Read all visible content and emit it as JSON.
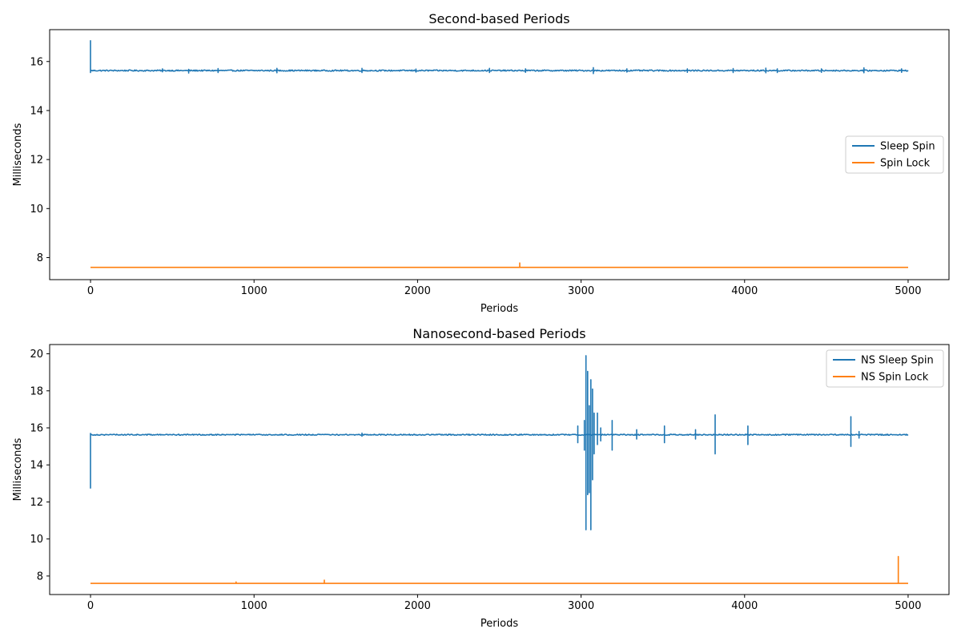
{
  "chart_data": [
    {
      "type": "line",
      "title": "Second-based Periods",
      "xlabel": "Periods",
      "ylabel": "Milliseconds",
      "xlim": [
        -250,
        5250
      ],
      "ylim": [
        7.1,
        17.3
      ],
      "xticks": [
        0,
        1000,
        2000,
        3000,
        4000,
        5000
      ],
      "yticks": [
        8,
        10,
        12,
        14,
        16
      ],
      "legend_position": "center-right",
      "series": [
        {
          "name": "Sleep Spin",
          "color": "#1f77b4",
          "baseline": 15.63,
          "noise": 0.025,
          "start_value": 16.85,
          "spikes": [
            {
              "x": 0,
              "lo": 15.55,
              "hi": 16.85
            },
            {
              "x": 440,
              "lo": 15.58,
              "hi": 15.7
            },
            {
              "x": 600,
              "lo": 15.53,
              "hi": 15.68
            },
            {
              "x": 780,
              "lo": 15.55,
              "hi": 15.71
            },
            {
              "x": 1140,
              "lo": 15.54,
              "hi": 15.72
            },
            {
              "x": 1660,
              "lo": 15.55,
              "hi": 15.72
            },
            {
              "x": 1990,
              "lo": 15.57,
              "hi": 15.69
            },
            {
              "x": 2440,
              "lo": 15.55,
              "hi": 15.72
            },
            {
              "x": 2660,
              "lo": 15.56,
              "hi": 15.7
            },
            {
              "x": 3075,
              "lo": 15.51,
              "hi": 15.75
            },
            {
              "x": 3280,
              "lo": 15.57,
              "hi": 15.7
            },
            {
              "x": 3650,
              "lo": 15.56,
              "hi": 15.7
            },
            {
              "x": 3930,
              "lo": 15.55,
              "hi": 15.71
            },
            {
              "x": 4130,
              "lo": 15.54,
              "hi": 15.73
            },
            {
              "x": 4200,
              "lo": 15.55,
              "hi": 15.7
            },
            {
              "x": 4470,
              "lo": 15.56,
              "hi": 15.7
            },
            {
              "x": 4730,
              "lo": 15.54,
              "hi": 15.74
            },
            {
              "x": 4960,
              "lo": 15.56,
              "hi": 15.7
            }
          ]
        },
        {
          "name": "Spin Lock",
          "color": "#ff7f0e",
          "baseline": 7.6,
          "noise": 0.0,
          "spikes": [
            {
              "x": 2625,
              "lo": 7.6,
              "hi": 7.78
            }
          ]
        }
      ]
    },
    {
      "type": "line",
      "title": "Nanosecond-based Periods",
      "xlabel": "Periods",
      "ylabel": "Milliseconds",
      "xlim": [
        -250,
        5250
      ],
      "ylim": [
        7.0,
        20.5
      ],
      "xticks": [
        0,
        1000,
        2000,
        3000,
        4000,
        5000
      ],
      "yticks": [
        8,
        10,
        12,
        14,
        16,
        18,
        20
      ],
      "legend_position": "upper-right",
      "series": [
        {
          "name": "NS Sleep Spin",
          "color": "#1f77b4",
          "baseline": 15.63,
          "noise": 0.03,
          "spikes": [
            {
              "x": 0,
              "lo": 12.75,
              "hi": 15.7
            },
            {
              "x": 1660,
              "lo": 15.55,
              "hi": 15.72
            },
            {
              "x": 2980,
              "lo": 15.2,
              "hi": 16.1
            },
            {
              "x": 3020,
              "lo": 14.8,
              "hi": 16.4
            },
            {
              "x": 3030,
              "lo": 10.5,
              "hi": 19.9
            },
            {
              "x": 3040,
              "lo": 12.4,
              "hi": 19.05
            },
            {
              "x": 3050,
              "lo": 12.5,
              "hi": 17.2
            },
            {
              "x": 3060,
              "lo": 10.5,
              "hi": 18.6
            },
            {
              "x": 3070,
              "lo": 13.2,
              "hi": 18.1
            },
            {
              "x": 3080,
              "lo": 14.6,
              "hi": 16.8
            },
            {
              "x": 3100,
              "lo": 15.1,
              "hi": 16.8
            },
            {
              "x": 3120,
              "lo": 15.3,
              "hi": 16.0
            },
            {
              "x": 3190,
              "lo": 14.8,
              "hi": 16.4
            },
            {
              "x": 3340,
              "lo": 15.4,
              "hi": 15.9
            },
            {
              "x": 3510,
              "lo": 15.2,
              "hi": 16.1
            },
            {
              "x": 3700,
              "lo": 15.4,
              "hi": 15.9
            },
            {
              "x": 3820,
              "lo": 14.6,
              "hi": 16.7
            },
            {
              "x": 4020,
              "lo": 15.1,
              "hi": 16.1
            },
            {
              "x": 4650,
              "lo": 15.0,
              "hi": 16.6
            },
            {
              "x": 4700,
              "lo": 15.45,
              "hi": 15.8
            }
          ]
        },
        {
          "name": "NS Spin Lock",
          "color": "#ff7f0e",
          "baseline": 7.6,
          "noise": 0.0,
          "spikes": [
            {
              "x": 890,
              "lo": 7.6,
              "hi": 7.68
            },
            {
              "x": 1430,
              "lo": 7.6,
              "hi": 7.78
            },
            {
              "x": 4940,
              "lo": 7.6,
              "hi": 9.05
            }
          ]
        }
      ]
    }
  ]
}
